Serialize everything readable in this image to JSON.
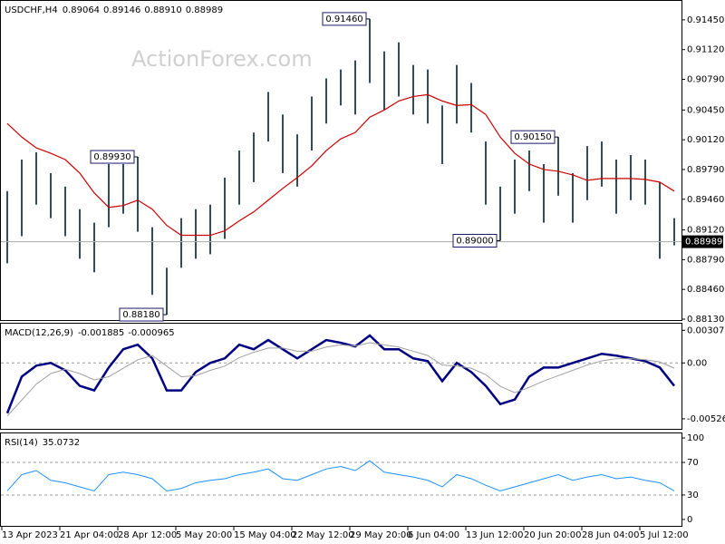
{
  "chart_data": [
    {
      "type": "ohlc",
      "title": "USDCHF,H4",
      "quote": [
        {
          "value": 0.89064,
          "label": "0.89064"
        },
        {
          "value": 0.89146,
          "label": "0.89146"
        },
        {
          "value": 0.8891,
          "label": "0.88910"
        },
        {
          "value": 0.88989,
          "label": "0.88989"
        }
      ],
      "watermark": "ActionForex.com",
      "color": "#2f4f55",
      "ylim": [
        0.8811,
        0.9166
      ],
      "yticks": [
        {
          "value": 0.9145,
          "label": "0.91450"
        },
        {
          "value": 0.9112,
          "label": "0.91120"
        },
        {
          "value": 0.9079,
          "label": "0.90790"
        },
        {
          "value": 0.9045,
          "label": "0.90450"
        },
        {
          "value": 0.9012,
          "label": "0.90120"
        },
        {
          "value": 0.8979,
          "label": "0.89790"
        },
        {
          "value": 0.8946,
          "label": "0.89460"
        },
        {
          "value": 0.8912,
          "label": "0.89120"
        },
        {
          "value": 0.8879,
          "label": "0.88790"
        },
        {
          "value": 0.8846,
          "label": "0.88460"
        },
        {
          "value": 0.8813,
          "label": "0.88130"
        }
      ],
      "high": [
        0.8955,
        0.899,
        0.8998,
        0.8975,
        0.896,
        0.8935,
        0.892,
        0.8985,
        0.8985,
        0.8993,
        0.8915,
        0.887,
        0.8925,
        0.8935,
        0.894,
        0.897,
        0.9,
        0.902,
        0.9065,
        0.904,
        0.9018,
        0.906,
        0.908,
        0.909,
        0.91,
        0.9146,
        0.911,
        0.912,
        0.9095,
        0.909,
        0.905,
        0.9095,
        0.9075,
        0.901,
        0.896,
        0.899,
        0.9,
        0.8985,
        0.9015,
        0.8975,
        0.9005,
        0.901,
        0.899,
        0.8995,
        0.899,
        0.8965,
        0.8925
      ],
      "low": [
        0.8875,
        0.8905,
        0.894,
        0.8925,
        0.8905,
        0.888,
        0.8865,
        0.8915,
        0.893,
        0.891,
        0.884,
        0.8818,
        0.887,
        0.888,
        0.8885,
        0.8902,
        0.894,
        0.8965,
        0.901,
        0.8975,
        0.896,
        0.9,
        0.903,
        0.905,
        0.904,
        0.9075,
        0.9045,
        0.906,
        0.904,
        0.903,
        0.8985,
        0.903,
        0.902,
        0.894,
        0.89,
        0.893,
        0.8955,
        0.892,
        0.895,
        0.892,
        0.8945,
        0.896,
        0.893,
        0.8945,
        0.894,
        0.888,
        0.8895
      ],
      "series": [
        {
          "color": "#cc0000",
          "values": [
            0.903,
            0.9015,
            0.9003,
            0.8997,
            0.899,
            0.8975,
            0.8953,
            0.8937,
            0.8939,
            0.8945,
            0.8935,
            0.8917,
            0.8906,
            0.8906,
            0.8906,
            0.8911,
            0.8922,
            0.8932,
            0.8945,
            0.8958,
            0.897,
            0.8983,
            0.9,
            0.9013,
            0.902,
            0.9037,
            0.9045,
            0.9055,
            0.906,
            0.9062,
            0.9055,
            0.905,
            0.9051,
            0.904,
            0.9015,
            0.8997,
            0.8985,
            0.8979,
            0.8977,
            0.8973,
            0.8967,
            0.8969,
            0.8969,
            0.8969,
            0.8968,
            0.8965,
            0.8955
          ]
        }
      ],
      "annotations": [
        {
          "value": 0.9146,
          "label": "0.91460"
        },
        {
          "value": 0.8993,
          "label": "0.89930"
        },
        {
          "value": 0.8818,
          "label": "0.88180"
        },
        {
          "value": 0.9015,
          "label": "0.90150"
        },
        {
          "value": 0.89,
          "label": "0.89000"
        }
      ],
      "last_price": {
        "value": 0.88989,
        "label": "0.88989"
      }
    },
    {
      "type": "line",
      "title": "MACD(12,26,9)",
      "readout": [
        -0.001885,
        -0.000965
      ],
      "ylim": [
        -0.0063,
        0.0037
      ],
      "yticks": [
        0.003078,
        {
          "value": 0,
          "label": "0.00"
        },
        -0.005268
      ],
      "levels": [
        0
      ],
      "series": [
        {
          "color": "#000080",
          "width": 2.5,
          "values": [
            -0.00474,
            -0.00129,
            -0.00026,
            0,
            -0.00069,
            -0.00216,
            -0.00259,
            -0.00043,
            0.00129,
            0.00172,
            0.00043,
            -0.00259,
            -0.00259,
            -0.00086,
            0,
            0.00043,
            0.00172,
            0.00129,
            0.00216,
            0.00129,
            0.00043,
            0.00129,
            0.00216,
            0.0019,
            0.00155,
            0.00259,
            0.00129,
            0.00129,
            0.00043,
            0.00017,
            -0.00172,
            0,
            -0.00086,
            -0.00216,
            -0.00388,
            -0.00345,
            -0.00129,
            -0.00043,
            -0.00043,
            0,
            0.00043,
            0.00086,
            0.00069,
            0.00043,
            0.00017,
            -0.00043,
            -0.00216
          ]
        },
        {
          "color": "#a0a0a0",
          "width": 1,
          "values": [
            -0.005,
            -0.0035,
            -0.002,
            -0.001,
            -0.0006,
            -0.001,
            -0.0016,
            -0.0013,
            -0.0005,
            0.0003,
            0.0007,
            -0.0003,
            -0.0013,
            -0.0012,
            -0.0007,
            -0.0003,
            0.0005,
            0.001,
            0.0014,
            0.0014,
            0.0011,
            0.0011,
            0.0015,
            0.0017,
            0.0016,
            0.0019,
            0.0017,
            0.0015,
            0.0011,
            0.0007,
            -0.0002,
            -0.0003,
            -0.0005,
            -0.0011,
            -0.0022,
            -0.0028,
            -0.0023,
            -0.0017,
            -0.0012,
            -0.0007,
            -0.0002,
            0.0002,
            0.0004,
            0.0004,
            0.0003,
            0.0001,
            -0.0005
          ]
        }
      ]
    },
    {
      "type": "line",
      "title": "RSI(14)",
      "readout": [
        35.0732
      ],
      "ylim": [
        -9,
        105.6
      ],
      "yticks": [
        100,
        70,
        30,
        0
      ],
      "levels": [
        70,
        30
      ],
      "categories": [
        "13 Apr 2023",
        null,
        null,
        null,
        "21 Apr 04:00",
        null,
        null,
        null,
        "28 Apr 12:00",
        null,
        null,
        null,
        "5 May 20:00",
        null,
        null,
        null,
        "15 May 04:00",
        null,
        null,
        null,
        "22 May 12:00",
        null,
        null,
        null,
        "29 May 20:00",
        null,
        null,
        null,
        "6 Jun 04:00",
        null,
        null,
        null,
        "13 Jun 12:00",
        null,
        null,
        null,
        "20 Jun 20:00",
        null,
        null,
        null,
        "28 Jun 04:00",
        null,
        null,
        null,
        "5 Jul 12:00",
        null,
        null
      ],
      "series": [
        {
          "color": "#1e90ff",
          "width": 1,
          "values": [
            35,
            55,
            60,
            48,
            45,
            40,
            35,
            55,
            58,
            55,
            50,
            35,
            38,
            45,
            48,
            50,
            55,
            58,
            62,
            50,
            48,
            55,
            62,
            65,
            60,
            72,
            58,
            55,
            52,
            48,
            40,
            55,
            50,
            42,
            35,
            40,
            45,
            50,
            55,
            48,
            52,
            55,
            50,
            52,
            48,
            45,
            35
          ]
        }
      ]
    }
  ]
}
